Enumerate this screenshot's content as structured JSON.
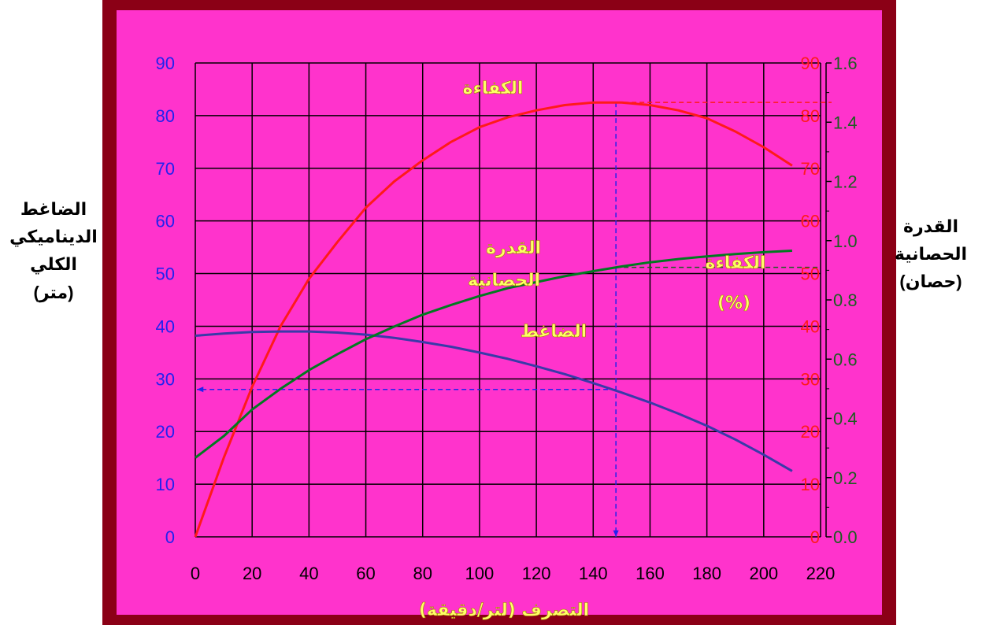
{
  "chart_data": {
    "type": "line",
    "grid": true,
    "xlabel": "التصرف (لتر/دقيقة)",
    "xticks": [
      0,
      20,
      40,
      60,
      80,
      100,
      120,
      140,
      160,
      180,
      200,
      220
    ],
    "xlim": [
      0,
      220
    ],
    "left_axis": {
      "label": [
        "الضاغط",
        "الديناميكي",
        "الكلي",
        "(متر)"
      ],
      "ticks": [
        0,
        10,
        20,
        30,
        40,
        50,
        60,
        70,
        80,
        90
      ],
      "ylim": [
        0,
        90
      ],
      "color": "#2222ee"
    },
    "mid_axis": {
      "ticks": [
        0,
        10,
        20,
        30,
        40,
        50,
        60,
        70,
        80,
        90
      ],
      "ylim": [
        0,
        90
      ],
      "color": "#ff1a1a"
    },
    "right_axis": {
      "label": [
        "القدرة",
        "الحصانية",
        "(حصان)"
      ],
      "ticks": [
        "0.0",
        "0.2",
        "0.4",
        "0.6",
        "0.8",
        "1.0",
        "1.2",
        "1.4",
        "1.6"
      ],
      "ylim": [
        0,
        1.6
      ],
      "color": "#1b5e20"
    },
    "series": [
      {
        "name": "الكفاءة",
        "axis": "mid",
        "color": "#ff1a1a",
        "x": [
          0,
          10,
          20,
          30,
          40,
          50,
          60,
          70,
          80,
          90,
          100,
          110,
          120,
          130,
          140,
          150,
          160,
          170,
          180,
          190,
          200,
          210
        ],
        "y": [
          0,
          15,
          28.5,
          40,
          49,
          56,
          62.5,
          67.5,
          71.5,
          75,
          77.8,
          79.7,
          81,
          82,
          82.5,
          82.5,
          82,
          81,
          79.5,
          77,
          74,
          70.5
        ]
      },
      {
        "name": "الضاغط",
        "axis": "left",
        "color": "#3a3aa8",
        "x": [
          0,
          10,
          20,
          30,
          40,
          50,
          60,
          70,
          80,
          90,
          100,
          110,
          120,
          130,
          140,
          150,
          160,
          170,
          180,
          190,
          200,
          210
        ],
        "y": [
          38.2,
          38.6,
          38.9,
          39,
          39,
          38.8,
          38.4,
          37.8,
          37,
          36.1,
          35,
          33.8,
          32.4,
          30.9,
          29.2,
          27.4,
          25.5,
          23.4,
          21.1,
          18.5,
          15.6,
          12.5
        ]
      },
      {
        "name": "القدرة الحصانية",
        "axis": "right",
        "color": "#007a20",
        "x": [
          0,
          10,
          20,
          30,
          40,
          50,
          60,
          70,
          80,
          90,
          100,
          110,
          120,
          130,
          140,
          150,
          160,
          170,
          180,
          190,
          200,
          210
        ],
        "y": [
          0.267,
          0.34,
          0.43,
          0.5,
          0.563,
          0.617,
          0.667,
          0.71,
          0.75,
          0.783,
          0.813,
          0.84,
          0.86,
          0.88,
          0.897,
          0.913,
          0.927,
          0.938,
          0.947,
          0.955,
          0.961,
          0.966
        ]
      }
    ],
    "annotations": [
      {
        "text": "الكفاءة",
        "series": "الكفاءة"
      },
      {
        "text": "القدرة",
        "series": "القدرة الحصانية"
      },
      {
        "text": "الحصانية",
        "series": "القدرة الحصانية"
      },
      {
        "text": "الضاغط",
        "series": "الضاغط"
      },
      {
        "text": "الكفاءة",
        "series": "legend"
      },
      {
        "text": "(%)",
        "series": "legend"
      }
    ],
    "operating_point": {
      "x": 148,
      "efficiency": 82.5,
      "head": 28,
      "power": 0.91
    }
  }
}
